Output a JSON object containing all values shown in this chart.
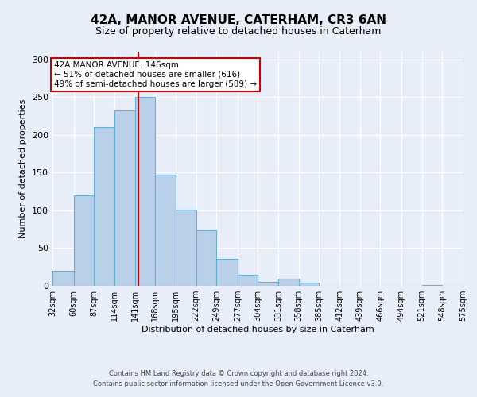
{
  "title": "42A, MANOR AVENUE, CATERHAM, CR3 6AN",
  "subtitle": "Size of property relative to detached houses in Caterham",
  "xlabel": "Distribution of detached houses by size in Caterham",
  "ylabel": "Number of detached properties",
  "bar_color": "#b8d0e8",
  "bar_edge_color": "#6aaed6",
  "background_color": "#e8eef8",
  "grid_color": "#ffffff",
  "bins": [
    32,
    60,
    87,
    114,
    141,
    168,
    195,
    222,
    249,
    277,
    304,
    331,
    358,
    385,
    412,
    439,
    466,
    494,
    521,
    548,
    575
  ],
  "bar_heights": [
    20,
    120,
    210,
    232,
    250,
    147,
    101,
    74,
    36,
    15,
    5,
    9,
    4,
    0,
    0,
    0,
    0,
    0,
    1,
    0
  ],
  "tick_labels": [
    "32sqm",
    "60sqm",
    "87sqm",
    "114sqm",
    "141sqm",
    "168sqm",
    "195sqm",
    "222sqm",
    "249sqm",
    "277sqm",
    "304sqm",
    "331sqm",
    "358sqm",
    "385sqm",
    "412sqm",
    "439sqm",
    "466sqm",
    "494sqm",
    "521sqm",
    "548sqm",
    "575sqm"
  ],
  "ylim": [
    0,
    310
  ],
  "yticks": [
    0,
    50,
    100,
    150,
    200,
    250,
    300
  ],
  "property_size": 146,
  "annotation_title": "42A MANOR AVENUE: 146sqm",
  "annotation_line1": "← 51% of detached houses are smaller (616)",
  "annotation_line2": "49% of semi-detached houses are larger (589) →",
  "vline_color": "#cc0000",
  "annotation_box_color": "#ffffff",
  "annotation_box_edge": "#cc0000",
  "footer_line1": "Contains HM Land Registry data © Crown copyright and database right 2024.",
  "footer_line2": "Contains public sector information licensed under the Open Government Licence v3.0.",
  "title_fontsize": 11,
  "subtitle_fontsize": 9,
  "tick_fontsize": 7,
  "ylabel_fontsize": 8,
  "xlabel_fontsize": 8,
  "footer_fontsize": 6
}
